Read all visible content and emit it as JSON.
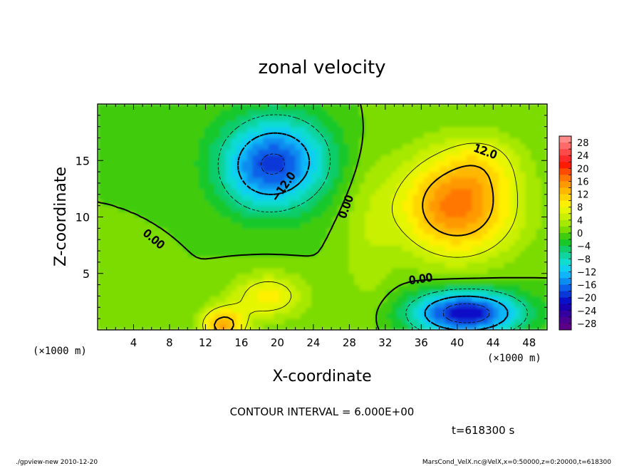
{
  "chart_data": {
    "type": "heatmap",
    "title": "zonal velocity",
    "xlabel": "X-coordinate",
    "ylabel": "Z-coordinate",
    "x_unit_label": "(×1000 m)",
    "y_unit_label": "(×1000 m)",
    "xlim": [
      0,
      50
    ],
    "ylim": [
      0,
      20
    ],
    "x_ticks": [
      4,
      8,
      12,
      16,
      20,
      24,
      28,
      32,
      36,
      40,
      44,
      48
    ],
    "y_ticks": [
      5,
      10,
      15
    ],
    "colorbar": {
      "labels": [
        "28",
        "24",
        "20",
        "16",
        "12",
        "8",
        "4",
        "0",
        "−4",
        "−8",
        "−12",
        "−16",
        "−20",
        "−24",
        "−28"
      ],
      "levels": [
        30,
        28,
        26,
        24,
        22,
        20,
        18,
        16,
        14,
        12,
        10,
        8,
        6,
        4,
        2,
        0,
        -2,
        -4,
        -6,
        -8,
        -10,
        -12,
        -14,
        -16,
        -18,
        -20,
        -22,
        -24,
        -26,
        -28,
        -30
      ],
      "colors": [
        "#ff8a8a",
        "#ff6a6a",
        "#ff4a4a",
        "#ff2a2a",
        "#ff1a00",
        "#ff4c00",
        "#ff7700",
        "#ff9900",
        "#ffb800",
        "#ffd500",
        "#fff000",
        "#e6f500",
        "#c8f000",
        "#a6e800",
        "#7cdc00",
        "#40cc10",
        "#18c82a",
        "#10cc6a",
        "#10d4a0",
        "#10dcd0",
        "#10d0f0",
        "#10b4f8",
        "#0a8cf0",
        "#0a60e8",
        "#0a38d8",
        "#0a10c8",
        "#1800b0",
        "#3400a0",
        "#4a0090",
        "#5c0088"
      ]
    },
    "blobs": [
      {
        "x": 20,
        "z": 15,
        "sx": 6.0,
        "sz": 4.0,
        "amp": -16
      },
      {
        "x": 18,
        "z": 13.5,
        "sx": 4.5,
        "sz": 3.5,
        "amp": -4
      },
      {
        "x": 40,
        "z": 11,
        "sx": 6.5,
        "sz": 4.5,
        "amp": 17
      },
      {
        "x": 43,
        "z": 15,
        "sx": 4.0,
        "sz": 2.5,
        "amp": 4
      },
      {
        "x": 41,
        "z": 1.5,
        "sx": 6.0,
        "sz": 2.0,
        "amp": -22
      },
      {
        "x": 14,
        "z": 0.4,
        "sx": 2.5,
        "sz": 1.6,
        "amp": 14
      },
      {
        "x": 19,
        "z": 3.0,
        "sx": 4.0,
        "sz": 2.0,
        "amp": 9
      },
      {
        "x": 4,
        "z": 4.0,
        "sx": 3.5,
        "sz": 2.5,
        "amp": 2
      },
      {
        "x": 30,
        "z": 8,
        "sx": 3.0,
        "sz": 8.0,
        "amp": 3
      }
    ],
    "contour_labels": [
      "−12.0",
      "12.0",
      "0.00",
      "0.00",
      "0.00"
    ],
    "contour_interval_text": "CONTOUR INTERVAL = 6.000E+00",
    "time_text": "t=618300 s"
  },
  "footer": {
    "left": "./gpview-new  2010-12-20",
    "right": "MarsCond_VelX.nc@VelX,x=0:50000,z=0:20000,t=618300"
  }
}
